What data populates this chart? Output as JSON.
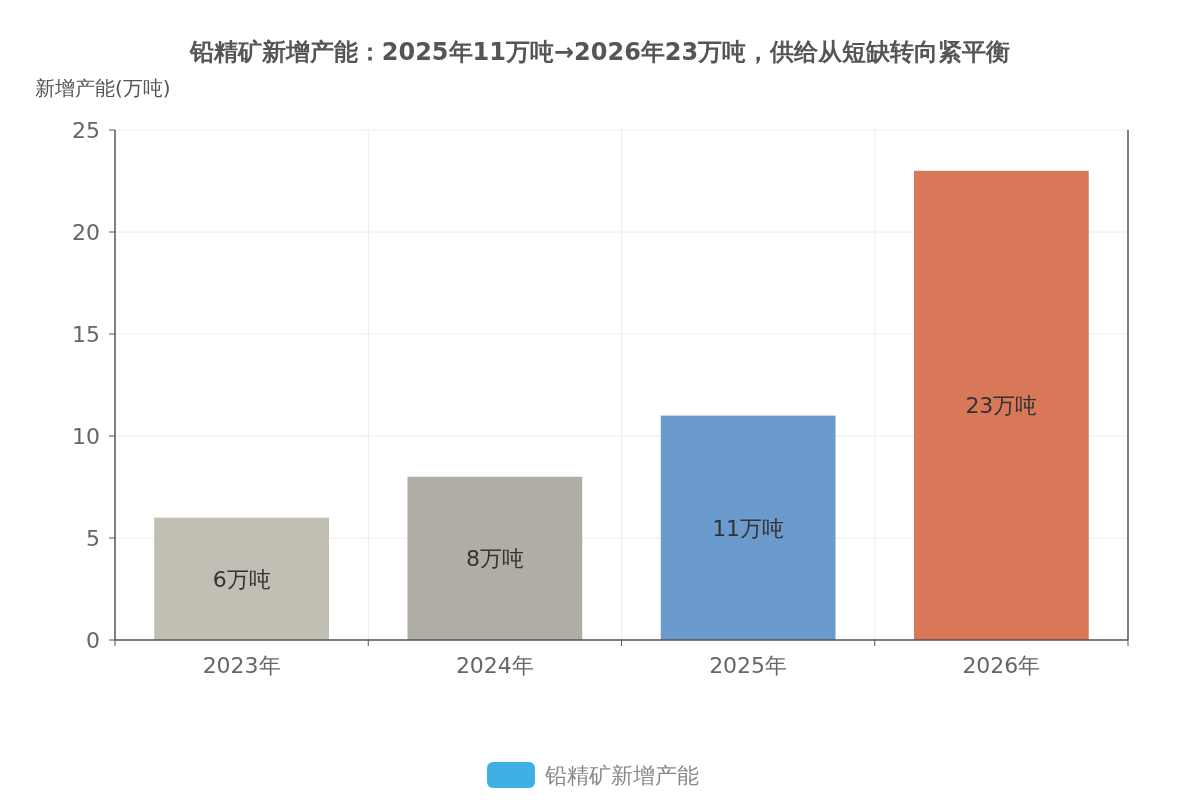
{
  "chart_data": {
    "type": "bar",
    "title": "铅精矿新增产能：2025年11万吨→2026年23万吨，供给从短缺转向紧平衡",
    "ylabel": "新增产能(万吨)",
    "categories": [
      "2023年",
      "2024年",
      "2025年",
      "2026年"
    ],
    "series": [
      {
        "name": "铅精矿新增产能",
        "color": "#3eb0e4",
        "values": [
          6,
          8,
          11,
          23
        ],
        "colors": [
          "#c1beb3",
          "#b0ada5",
          "#6b9bcc",
          "#d97859"
        ],
        "value_labels": [
          "6万吨",
          "8万吨",
          "11万吨",
          "23万吨"
        ]
      }
    ],
    "ylim": [
      0,
      25
    ],
    "yticks": [
      0,
      5,
      10,
      15,
      20,
      25
    ],
    "grid": true,
    "legend": "bottom"
  }
}
